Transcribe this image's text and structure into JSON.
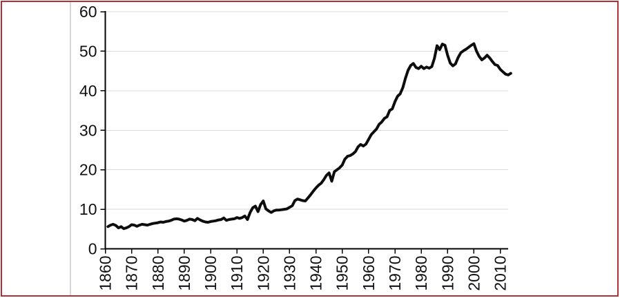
{
  "frame": {
    "border_color": "#b03038",
    "divider_color": "#d6d6d6",
    "background_color": "#ffffff"
  },
  "chart_data": {
    "type": "line",
    "title": "",
    "xlabel": "",
    "ylabel": "",
    "legend": "none",
    "grid": "horizontal",
    "xlim": [
      1860,
      2013
    ],
    "ylim": [
      0,
      60
    ],
    "yticks": [
      0,
      10,
      20,
      30,
      40,
      50,
      60
    ],
    "ytick_labels": [
      "0",
      "10",
      "20",
      "30",
      "40",
      "50",
      "60"
    ],
    "xticks": [
      1860,
      1870,
      1880,
      1890,
      1900,
      1910,
      1920,
      1930,
      1940,
      1950,
      1960,
      1970,
      1980,
      1990,
      2000,
      2010
    ],
    "xtick_labels": [
      "1860",
      "1870",
      "1880",
      "1890",
      "1900",
      "1910",
      "1920",
      "1930",
      "1940",
      "1950",
      "1960",
      "1970",
      "1980",
      "1990",
      "2000",
      "2010"
    ],
    "xtick_label_rotation_deg": -90,
    "x_years": {
      "start": 1861,
      "end": 2014,
      "step": 1
    },
    "series": [
      {
        "name": "series-1",
        "values": [
          5.6,
          6.0,
          6.2,
          5.9,
          5.3,
          5.6,
          5.1,
          5.3,
          5.6,
          6.1,
          6.0,
          5.7,
          6.0,
          6.2,
          6.1,
          6.0,
          6.2,
          6.4,
          6.5,
          6.6,
          6.8,
          6.7,
          6.9,
          7.0,
          7.2,
          7.5,
          7.6,
          7.5,
          7.3,
          7.0,
          7.2,
          7.5,
          7.4,
          7.1,
          7.7,
          7.3,
          7.0,
          6.8,
          6.7,
          6.9,
          7.0,
          7.1,
          7.3,
          7.4,
          7.8,
          7.2,
          7.4,
          7.5,
          7.6,
          7.9,
          7.7,
          7.9,
          8.3,
          7.4,
          9.2,
          10.4,
          10.8,
          9.4,
          11.2,
          12.1,
          10.1,
          9.6,
          9.2,
          9.6,
          9.8,
          9.8,
          9.9,
          10.0,
          10.1,
          10.5,
          10.9,
          12.2,
          12.6,
          12.4,
          12.2,
          12.1,
          12.9,
          13.7,
          14.6,
          15.4,
          16.1,
          16.6,
          17.5,
          18.6,
          19.2,
          17.1,
          19.5,
          20.0,
          20.5,
          21.2,
          22.7,
          23.4,
          23.6,
          24.0,
          24.6,
          25.8,
          26.4,
          26.0,
          26.5,
          27.7,
          28.9,
          29.6,
          30.3,
          31.5,
          32.1,
          33.0,
          33.4,
          35.0,
          35.4,
          37.2,
          38.6,
          39.2,
          40.8,
          43.2,
          45.2,
          46.4,
          46.9,
          45.9,
          45.6,
          46.2,
          45.6,
          46.0,
          45.7,
          46.1,
          48.2,
          51.4,
          50.4,
          51.8,
          51.5,
          49.0,
          47.0,
          46.3,
          46.8,
          48.4,
          49.6,
          50.1,
          50.5,
          51.0,
          51.5,
          51.9,
          50.0,
          48.7,
          47.8,
          48.3,
          49.0,
          48.3,
          47.4,
          46.6,
          46.4,
          45.4,
          44.8,
          44.2,
          44.0,
          44.4
        ]
      }
    ],
    "line_color": "#0d0d0d",
    "line_width": 4,
    "grid_color": "#d9d9d9",
    "axis_color": "#000000",
    "tick_label_color": "#111111"
  }
}
